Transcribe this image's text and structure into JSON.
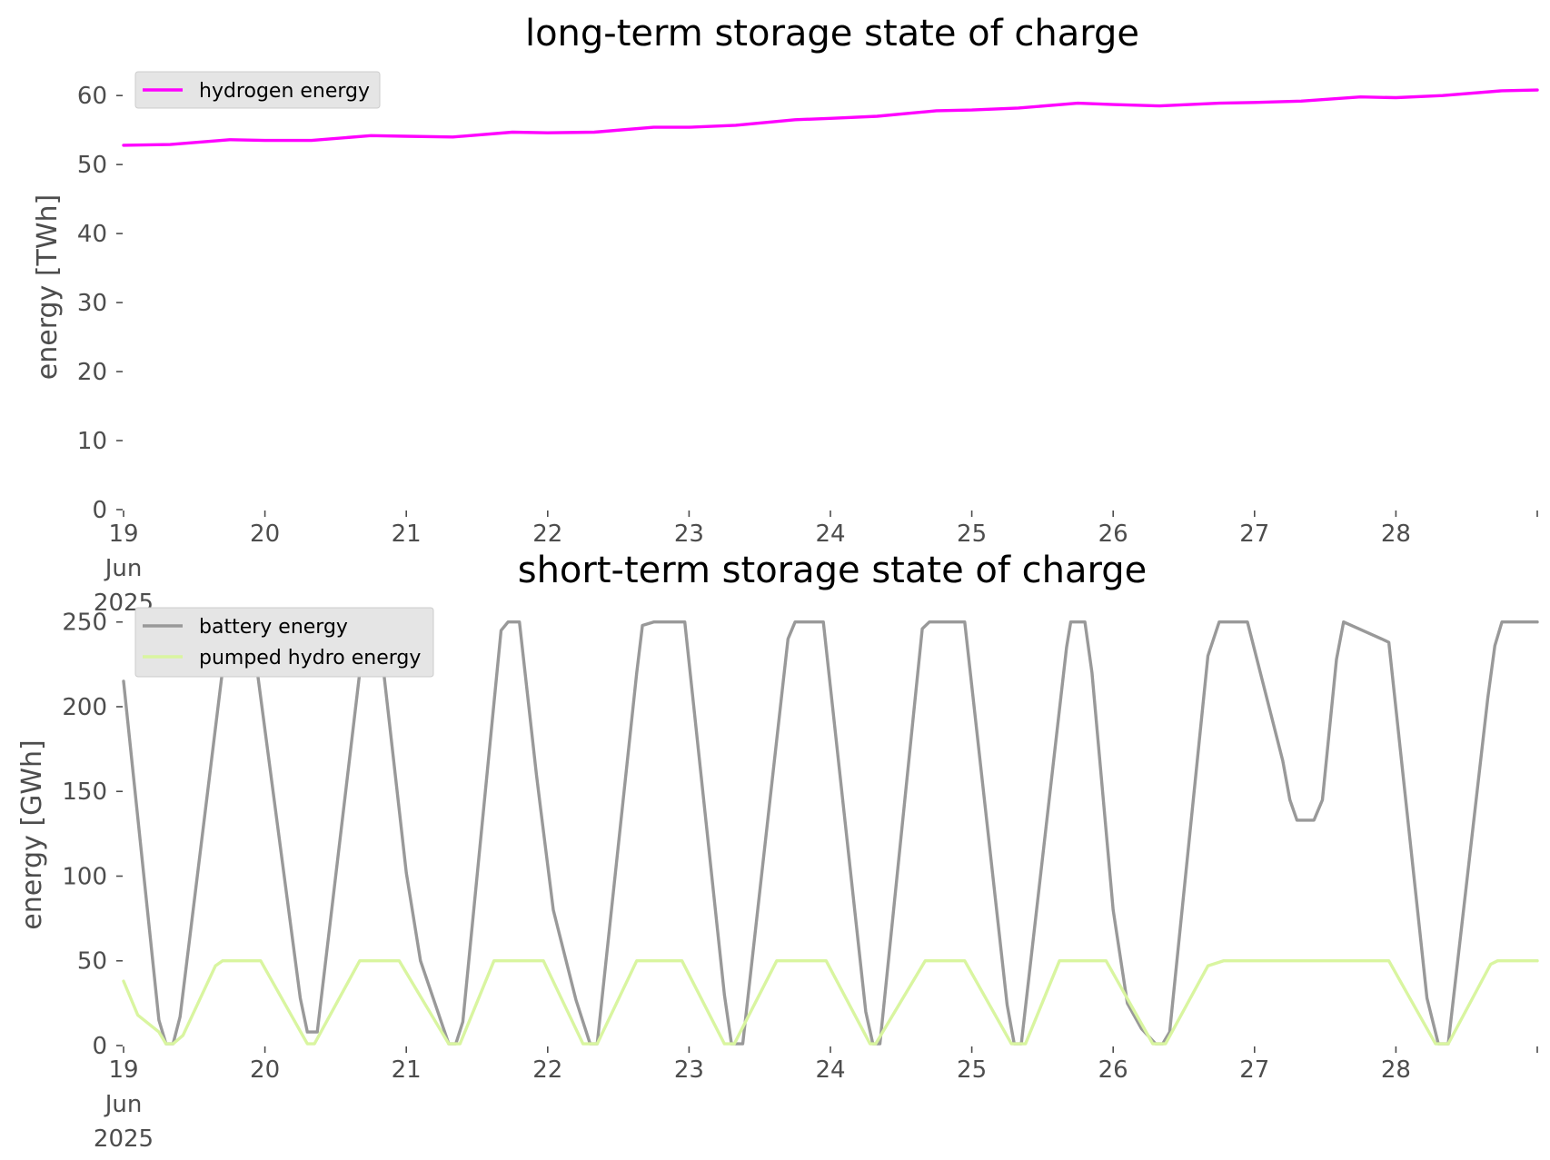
{
  "chart_data": [
    {
      "type": "line",
      "title": "long-term storage state of charge",
      "xlabel": "",
      "ylabel": "energy [TWh]",
      "ylim": [
        0,
        62
      ],
      "xlim": [
        19.0,
        29.0
      ],
      "x_tick_values": [
        19,
        20,
        21,
        22,
        23,
        24,
        25,
        26,
        27,
        28
      ],
      "x_tick_labels": [
        [
          "19",
          "Jun",
          "2025"
        ],
        [
          "20"
        ],
        [
          "21"
        ],
        [
          "22"
        ],
        [
          "23"
        ],
        [
          "24"
        ],
        [
          "25"
        ],
        [
          "26"
        ],
        [
          "27"
        ],
        [
          "28"
        ]
      ],
      "y_ticks": [
        0,
        10,
        20,
        30,
        40,
        50,
        60
      ],
      "grid": false,
      "legend_position": "upper-left",
      "series": [
        {
          "name": "hydrogen energy",
          "color": "#ff00ff",
          "x": [
            19.0,
            19.33,
            19.75,
            20.0,
            20.33,
            20.75,
            21.0,
            21.33,
            21.75,
            22.0,
            22.33,
            22.75,
            23.0,
            23.33,
            23.75,
            24.0,
            24.33,
            24.75,
            25.0,
            25.33,
            25.75,
            26.0,
            26.33,
            26.75,
            27.0,
            27.33,
            27.75,
            28.0,
            28.33,
            28.75,
            29.0
          ],
          "values": [
            52.8,
            52.9,
            53.6,
            53.5,
            53.5,
            54.2,
            54.1,
            54.0,
            54.7,
            54.6,
            54.7,
            55.4,
            55.4,
            55.7,
            56.5,
            56.7,
            57.0,
            57.8,
            57.9,
            58.2,
            58.9,
            58.7,
            58.5,
            58.9,
            59.0,
            59.2,
            59.8,
            59.7,
            60.0,
            60.7,
            60.8
          ]
        }
      ]
    },
    {
      "type": "line",
      "title": "short-term storage state of charge",
      "xlabel": "",
      "ylabel": "energy [GWh]",
      "ylim": [
        0,
        252
      ],
      "xlim": [
        19.0,
        29.0
      ],
      "x_tick_values": [
        19,
        20,
        21,
        22,
        23,
        24,
        25,
        26,
        27,
        28
      ],
      "x_tick_labels": [
        [
          "19",
          "Jun",
          "2025"
        ],
        [
          "20"
        ],
        [
          "21"
        ],
        [
          "22"
        ],
        [
          "23"
        ],
        [
          "24"
        ],
        [
          "25"
        ],
        [
          "26"
        ],
        [
          "27"
        ],
        [
          "28"
        ]
      ],
      "y_ticks": [
        0,
        50,
        100,
        150,
        200,
        250
      ],
      "grid": false,
      "legend_position": "upper-left",
      "series": [
        {
          "name": "battery energy",
          "color": "#999999",
          "x": [
            19.0,
            19.25,
            19.3,
            19.35,
            19.4,
            19.72,
            19.8,
            19.9,
            20.25,
            20.3,
            20.37,
            20.67,
            20.75,
            20.8,
            21.0,
            21.1,
            21.3,
            21.35,
            21.4,
            21.67,
            21.72,
            21.8,
            21.92,
            21.95,
            22.04,
            22.2,
            22.3,
            22.35,
            22.63,
            22.67,
            22.75,
            22.97,
            23.25,
            23.3,
            23.38,
            23.7,
            23.75,
            23.95,
            24.25,
            24.3,
            24.35,
            24.65,
            24.7,
            24.95,
            25.25,
            25.3,
            25.35,
            25.67,
            25.7,
            25.8,
            25.85,
            26.0,
            26.1,
            26.2,
            26.3,
            26.35,
            26.4,
            26.67,
            26.75,
            26.95,
            27.2,
            27.25,
            27.3,
            27.42,
            27.48,
            27.58,
            27.63,
            27.9,
            27.95,
            28.22,
            28.3,
            28.37,
            28.65,
            28.7,
            28.75,
            29.0
          ],
          "values": [
            215,
            15,
            1,
            1,
            17,
            235,
            250,
            250,
            28,
            8,
            8,
            220,
            250,
            250,
            102,
            50,
            1,
            1,
            14,
            245,
            250,
            250,
            160,
            140,
            80,
            27,
            1,
            1,
            220,
            248,
            250,
            250,
            30,
            1,
            1,
            240,
            250,
            250,
            20,
            1,
            1,
            246,
            250,
            250,
            24,
            1,
            1,
            235,
            250,
            250,
            220,
            80,
            25,
            10,
            1,
            1,
            8,
            230,
            250,
            250,
            168,
            145,
            133,
            133,
            145,
            228,
            250,
            240,
            238,
            28,
            1,
            1,
            205,
            236,
            250,
            250
          ]
        },
        {
          "name": "pumped hydro energy",
          "color": "#d9f5a0",
          "x": [
            19.0,
            19.1,
            19.25,
            19.3,
            19.35,
            19.42,
            19.65,
            19.7,
            19.97,
            20.3,
            20.35,
            20.67,
            20.95,
            21.3,
            21.38,
            21.62,
            21.97,
            22.25,
            22.35,
            22.63,
            22.95,
            23.25,
            23.32,
            23.62,
            23.97,
            24.28,
            24.32,
            24.67,
            24.95,
            25.28,
            25.38,
            25.62,
            25.95,
            26.28,
            26.37,
            26.67,
            26.78,
            27.95,
            28.28,
            28.37,
            28.67,
            28.72,
            29.0
          ],
          "values": [
            38,
            18,
            8,
            1,
            1,
            6,
            47,
            50,
            50,
            1,
            1,
            50,
            50,
            1,
            1,
            50,
            50,
            1,
            1,
            50,
            50,
            1,
            1,
            50,
            50,
            1,
            1,
            50,
            50,
            1,
            1,
            50,
            50,
            1,
            1,
            47,
            50,
            50,
            1,
            1,
            48,
            50,
            50
          ]
        }
      ]
    }
  ]
}
